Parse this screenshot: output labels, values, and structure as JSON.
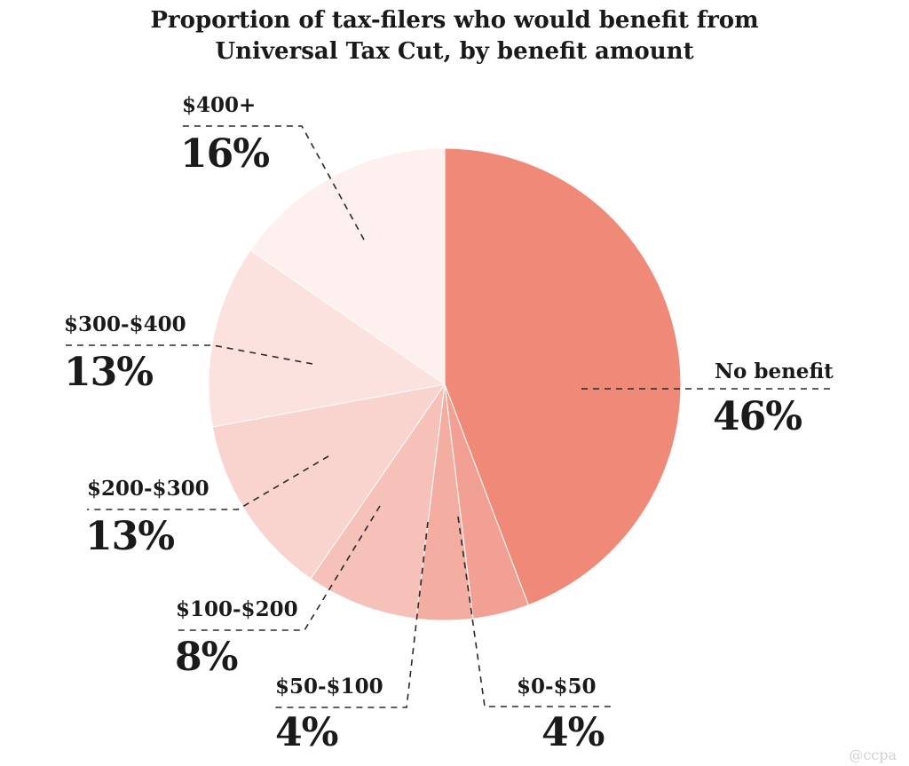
{
  "chart_data": {
    "type": "pie",
    "title_lines": [
      "Proportion of tax-filers who would benefit from",
      "Universal Tax Cut, by benefit amount"
    ],
    "slices": [
      {
        "label": "No benefit",
        "value": 46,
        "value_label": "46%",
        "color": "#f08a78"
      },
      {
        "label": "$0-$50",
        "value": 4,
        "value_label": "4%",
        "color": "#f2a093"
      },
      {
        "label": "$50-$100",
        "value": 4,
        "value_label": "4%",
        "color": "#f4ada1"
      },
      {
        "label": "$100-$200",
        "value": 8,
        "value_label": "8%",
        "color": "#f6c1b8"
      },
      {
        "label": "$200-$300",
        "value": 13,
        "value_label": "13%",
        "color": "#f9d3cd"
      },
      {
        "label": "$300-$400",
        "value": 13,
        "value_label": "13%",
        "color": "#fbe2de"
      },
      {
        "label": "$400+",
        "value": 16,
        "value_label": "16%",
        "color": "#fdf0ee"
      }
    ],
    "start": "12 o'clock",
    "direction": "clockwise"
  },
  "watermark": "@ccpa"
}
